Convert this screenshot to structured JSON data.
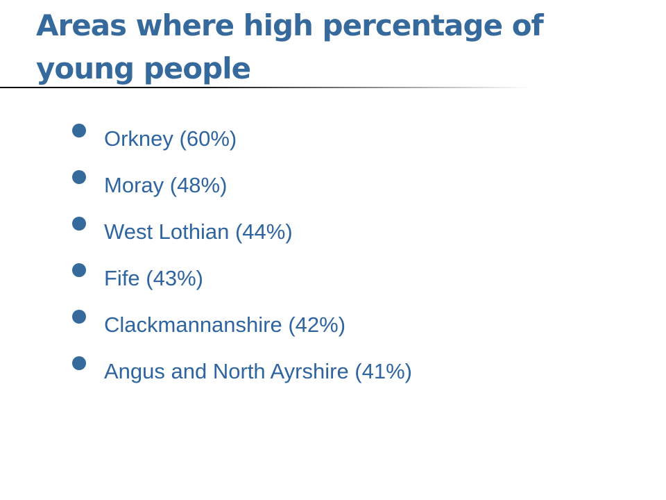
{
  "title": "Areas where high percentage of young people",
  "items": [
    {
      "label": "Orkney (60%)"
    },
    {
      "label": "Moray (48%)"
    },
    {
      "label": "West Lothian (44%)"
    },
    {
      "label": "Fife (43%)"
    },
    {
      "label": "Clackmannanshire (42%)"
    },
    {
      "label": "Angus and North Ayrshire (41%)"
    }
  ],
  "colors": {
    "title": "#36699c",
    "text": "#2e64a0",
    "bullet": "#36699c"
  }
}
